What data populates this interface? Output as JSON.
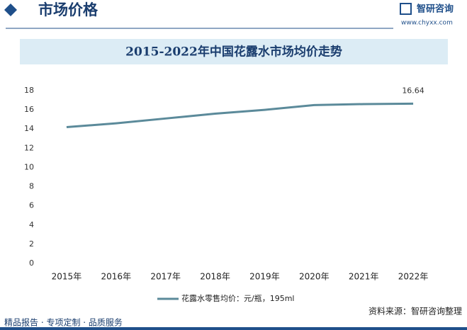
{
  "header": {
    "title": "市场价格",
    "brand": "智研咨询",
    "url": "www.chyxx.com"
  },
  "chart_data": {
    "type": "line",
    "title": "2015-2022年中国花露水市场均价走势",
    "categories": [
      "2015年",
      "2016年",
      "2017年",
      "2018年",
      "2019年",
      "2020年",
      "2021年",
      "2022年"
    ],
    "series": [
      {
        "name": "花露水零售均价：元/瓶，195ml",
        "color": "#5b8a9a",
        "values": [
          14.2,
          14.6,
          15.1,
          15.6,
          16.0,
          16.5,
          16.6,
          16.64
        ],
        "value_labels": [
          null,
          null,
          null,
          null,
          null,
          null,
          null,
          "16.64"
        ]
      }
    ],
    "ylim": [
      0,
      18
    ],
    "yticks": [
      0,
      2,
      4,
      6,
      8,
      10,
      12,
      14,
      16,
      18
    ],
    "grid": false,
    "legend": "bottom",
    "source": "资料来源：智研咨询整理"
  },
  "footer": {
    "text": "精品报告 · 专项定制 · 品质服务"
  }
}
